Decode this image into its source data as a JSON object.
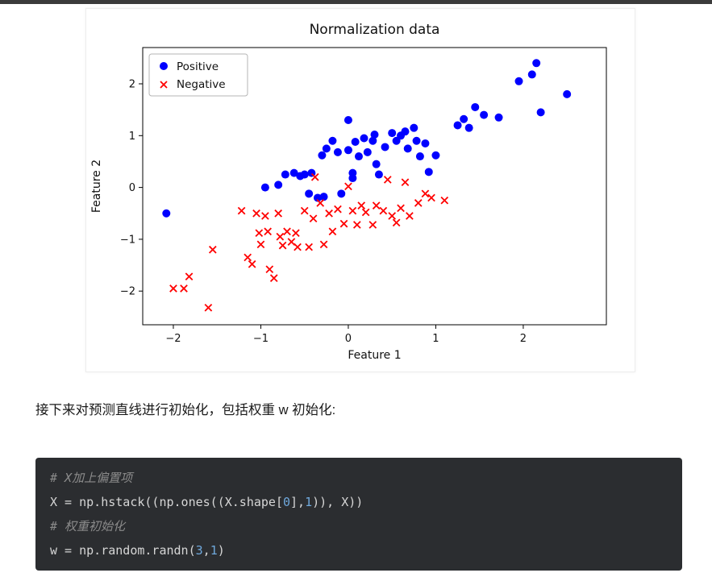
{
  "page": {
    "top_border_color": "#3b3b3b",
    "background": "#ffffff"
  },
  "article": {
    "intro_text": "接下来对预测直线进行初始化，包括权重 w 初始化:"
  },
  "code_block": {
    "background": "#2b2d30",
    "comment_color": "#8b8b8b",
    "code_color": "#d6d6d6",
    "number_color": "#6fa8dc",
    "lines": [
      {
        "segments": [
          {
            "text": "# X加上偏置项",
            "style": "comment"
          }
        ]
      },
      {
        "segments": [
          {
            "text": "X = np.hstack((np.ones((X.shape[",
            "style": "code"
          },
          {
            "text": "0",
            "style": "number"
          },
          {
            "text": "],",
            "style": "code"
          },
          {
            "text": "1",
            "style": "number"
          },
          {
            "text": ")), X))",
            "style": "code"
          }
        ]
      },
      {
        "segments": [
          {
            "text": "# 权重初始化",
            "style": "comment"
          }
        ]
      },
      {
        "segments": [
          {
            "text": "w = np.random.randn(",
            "style": "code"
          },
          {
            "text": "3",
            "style": "number"
          },
          {
            "text": ",",
            "style": "code"
          },
          {
            "text": "1",
            "style": "number"
          },
          {
            "text": ")",
            "style": "code"
          }
        ]
      }
    ]
  },
  "chart_data": {
    "type": "scatter",
    "title": "Normalization data",
    "xlabel": "Feature 1",
    "ylabel": "Feature 2",
    "xlim": [
      -2.35,
      2.95
    ],
    "ylim": [
      -2.65,
      2.7
    ],
    "xticks": [
      -2,
      -1,
      0,
      1,
      2
    ],
    "yticks": [
      -2,
      -1,
      0,
      1,
      2
    ],
    "grid": false,
    "legend_position": "upper left",
    "series": [
      {
        "name": "Positive",
        "marker": "circle",
        "color": "#0000ff",
        "points": [
          [
            -2.08,
            -0.5
          ],
          [
            -0.95,
            0.0
          ],
          [
            -0.8,
            0.05
          ],
          [
            -0.72,
            0.25
          ],
          [
            -0.62,
            0.28
          ],
          [
            -0.55,
            0.22
          ],
          [
            -0.5,
            0.25
          ],
          [
            -0.45,
            -0.12
          ],
          [
            -0.42,
            0.28
          ],
          [
            -0.35,
            -0.2
          ],
          [
            -0.3,
            0.62
          ],
          [
            -0.28,
            -0.18
          ],
          [
            -0.25,
            0.75
          ],
          [
            -0.18,
            0.9
          ],
          [
            -0.12,
            0.68
          ],
          [
            -0.08,
            -0.12
          ],
          [
            0.0,
            1.3
          ],
          [
            0.0,
            0.72
          ],
          [
            0.05,
            0.28
          ],
          [
            0.05,
            0.18
          ],
          [
            0.08,
            0.88
          ],
          [
            0.12,
            0.6
          ],
          [
            0.18,
            0.95
          ],
          [
            0.22,
            0.68
          ],
          [
            0.28,
            0.9
          ],
          [
            0.3,
            1.02
          ],
          [
            0.32,
            0.45
          ],
          [
            0.35,
            0.25
          ],
          [
            0.42,
            0.78
          ],
          [
            0.5,
            1.05
          ],
          [
            0.55,
            0.9
          ],
          [
            0.6,
            1.0
          ],
          [
            0.65,
            1.08
          ],
          [
            0.68,
            0.75
          ],
          [
            0.75,
            1.15
          ],
          [
            0.78,
            0.9
          ],
          [
            0.82,
            0.6
          ],
          [
            0.88,
            0.85
          ],
          [
            0.92,
            0.3
          ],
          [
            1.0,
            0.62
          ],
          [
            1.25,
            1.2
          ],
          [
            1.32,
            1.32
          ],
          [
            1.38,
            1.15
          ],
          [
            1.45,
            1.55
          ],
          [
            1.55,
            1.4
          ],
          [
            1.72,
            1.35
          ],
          [
            1.95,
            2.05
          ],
          [
            2.1,
            2.18
          ],
          [
            2.15,
            2.4
          ],
          [
            2.2,
            1.45
          ],
          [
            2.5,
            1.8
          ]
        ]
      },
      {
        "name": "Negative",
        "marker": "x",
        "color": "#ff0000",
        "points": [
          [
            -2.0,
            -1.95
          ],
          [
            -1.88,
            -1.95
          ],
          [
            -1.82,
            -1.72
          ],
          [
            -1.6,
            -2.32
          ],
          [
            -1.55,
            -1.2
          ],
          [
            -1.22,
            -0.45
          ],
          [
            -1.15,
            -1.35
          ],
          [
            -1.1,
            -1.48
          ],
          [
            -1.05,
            -0.5
          ],
          [
            -1.02,
            -0.88
          ],
          [
            -1.0,
            -1.1
          ],
          [
            -0.95,
            -0.55
          ],
          [
            -0.92,
            -0.85
          ],
          [
            -0.9,
            -1.58
          ],
          [
            -0.85,
            -1.75
          ],
          [
            -0.8,
            -0.5
          ],
          [
            -0.78,
            -0.95
          ],
          [
            -0.75,
            -1.12
          ],
          [
            -0.7,
            -0.85
          ],
          [
            -0.65,
            -1.05
          ],
          [
            -0.6,
            -0.88
          ],
          [
            -0.58,
            -1.15
          ],
          [
            -0.5,
            -0.45
          ],
          [
            -0.45,
            -1.15
          ],
          [
            -0.4,
            -0.6
          ],
          [
            -0.38,
            0.2
          ],
          [
            -0.32,
            -0.3
          ],
          [
            -0.28,
            -1.1
          ],
          [
            -0.22,
            -0.5
          ],
          [
            -0.18,
            -0.85
          ],
          [
            -0.12,
            -0.42
          ],
          [
            -0.05,
            -0.7
          ],
          [
            0.0,
            0.02
          ],
          [
            0.05,
            -0.45
          ],
          [
            0.1,
            -0.72
          ],
          [
            0.15,
            -0.35
          ],
          [
            0.2,
            -0.48
          ],
          [
            0.28,
            -0.72
          ],
          [
            0.32,
            -0.35
          ],
          [
            0.4,
            -0.45
          ],
          [
            0.45,
            0.15
          ],
          [
            0.5,
            -0.55
          ],
          [
            0.55,
            -0.68
          ],
          [
            0.6,
            -0.4
          ],
          [
            0.65,
            0.1
          ],
          [
            0.7,
            -0.55
          ],
          [
            0.8,
            -0.3
          ],
          [
            0.88,
            -0.12
          ],
          [
            0.95,
            -0.2
          ],
          [
            1.1,
            -0.25
          ]
        ]
      }
    ]
  }
}
